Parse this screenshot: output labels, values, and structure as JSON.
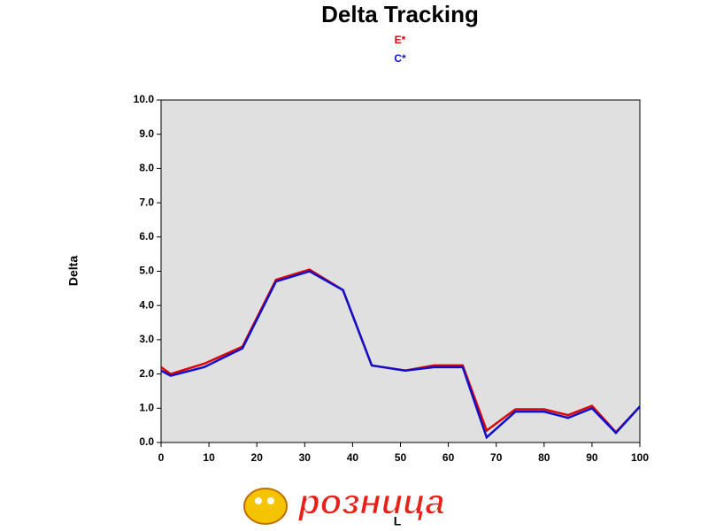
{
  "chart_data": {
    "type": "line",
    "title": "Delta Tracking",
    "x_label": "L",
    "y_label": "Delta",
    "x": [
      0,
      2,
      9,
      17,
      24,
      31,
      38,
      44,
      51,
      57,
      63,
      68,
      74,
      80,
      85,
      90,
      95,
      100
    ],
    "series": [
      {
        "name": "E*",
        "color": "#dd0000",
        "values": [
          2.2,
          2.0,
          2.3,
          2.8,
          4.75,
          5.05,
          4.45,
          2.25,
          2.1,
          2.25,
          2.25,
          0.35,
          0.97,
          0.97,
          0.8,
          1.07,
          0.3,
          1.05
        ]
      },
      {
        "name": "C*",
        "color": "#1010cc",
        "values": [
          2.1,
          1.95,
          2.2,
          2.75,
          4.7,
          5.0,
          4.45,
          2.25,
          2.1,
          2.2,
          2.2,
          0.15,
          0.9,
          0.9,
          0.72,
          1.0,
          0.28,
          1.05
        ]
      }
    ],
    "xlim": [
      0,
      100
    ],
    "xticks": [
      0,
      10,
      20,
      30,
      40,
      50,
      60,
      70,
      80,
      90,
      100
    ],
    "ylim": [
      0,
      10
    ],
    "yticks": [
      {
        "value": 0,
        "label": "0.0"
      },
      {
        "value": 1,
        "label": "1.0"
      },
      {
        "value": 2,
        "label": "2.0"
      },
      {
        "value": 3,
        "label": "3.0"
      },
      {
        "value": 4,
        "label": "4.0"
      },
      {
        "value": 5,
        "label": "5.0"
      },
      {
        "value": 6,
        "label": "6.0"
      },
      {
        "value": 7,
        "label": "7.0"
      },
      {
        "value": 8,
        "label": "8.0"
      },
      {
        "value": 9,
        "label": "9.0"
      },
      {
        "value": 10,
        "label": "10.0"
      }
    ],
    "plot_background": "#e0e0e0"
  },
  "watermark": "розница"
}
